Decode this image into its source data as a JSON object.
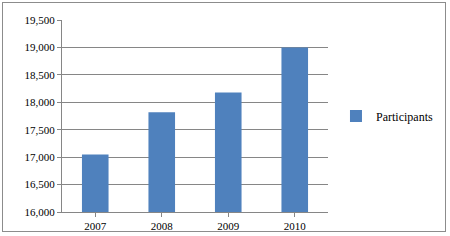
{
  "chart_data": {
    "type": "bar",
    "categories": [
      "2007",
      "2008",
      "2009",
      "2010"
    ],
    "series": [
      {
        "name": "Participants",
        "color": "#4f81bd",
        "values": [
          17050,
          17820,
          18180,
          19000
        ]
      }
    ],
    "ylim": [
      16000,
      19500
    ],
    "yticks": [
      {
        "value": 16000,
        "label": "16,000"
      },
      {
        "value": 16500,
        "label": "16,500"
      },
      {
        "value": 17000,
        "label": "17,000"
      },
      {
        "value": 17500,
        "label": "17,500"
      },
      {
        "value": 18000,
        "label": "18,000"
      },
      {
        "value": 18500,
        "label": "18,500"
      },
      {
        "value": 19000,
        "label": "19,000"
      },
      {
        "value": 19500,
        "label": "19,500"
      }
    ],
    "grid": true,
    "legend": "right"
  }
}
